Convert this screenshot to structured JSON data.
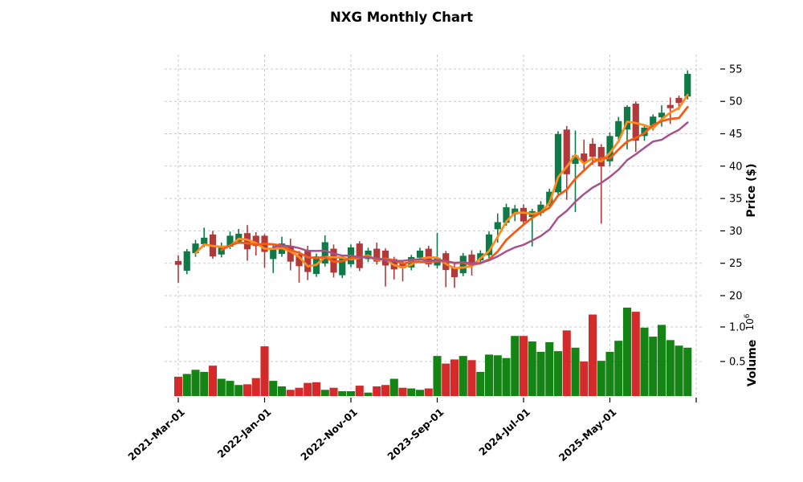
{
  "title": "NXG Monthly Chart",
  "chart_data": {
    "type": "candlestick",
    "title": "NXG Monthly Chart",
    "ylabel": "Price ($)",
    "volume_ylabel": "Volume",
    "volume_scale_base": "10",
    "volume_scale_exp": "6",
    "legend": "none",
    "grid": "dashed",
    "price_ticks": [
      20,
      25,
      30,
      35,
      40,
      45,
      50,
      55
    ],
    "price_ylim": [
      18.7,
      57.2
    ],
    "volume_ticks": [
      0.5,
      1.0
    ],
    "volume_ylim": [
      0,
      1.31
    ],
    "x_ticks": [
      {
        "index": 0,
        "label": "2021-Mar-01"
      },
      {
        "index": 10,
        "label": "2022-Jan-01"
      },
      {
        "index": 20,
        "label": "2022-Nov-01"
      },
      {
        "index": 30,
        "label": "2023-Sep-01"
      },
      {
        "index": 40,
        "label": "2024-Jul-01"
      },
      {
        "index": 50,
        "label": "2025-May-01"
      },
      {
        "index": 60,
        "label": ""
      }
    ],
    "mav_periods": [
      3,
      6,
      12
    ],
    "colors": {
      "up": "#0f7a47",
      "down": "#b23939",
      "volume_up": "#148514",
      "volume_down": "#d42a2a",
      "mav3": "#fd8c1e",
      "mav6": "#f15c16",
      "mav12": "#a5538b",
      "grid": "#c9c9c9",
      "text": "#000000"
    },
    "candles": [
      [
        "2021-Mar",
        25.3,
        26.2,
        22.0,
        24.8,
        0.28
      ],
      [
        "2021-Apr",
        23.9,
        27.2,
        23.3,
        26.8,
        0.32
      ],
      [
        "2021-May",
        26.6,
        28.6,
        26.0,
        28.0,
        0.38
      ],
      [
        "2021-Jun",
        28.0,
        30.5,
        27.5,
        28.9,
        0.35
      ],
      [
        "2021-Jul",
        29.4,
        30.0,
        25.7,
        26.1,
        0.44
      ],
      [
        "2021-Aug",
        26.4,
        28.2,
        25.9,
        27.6,
        0.25
      ],
      [
        "2021-Sep",
        27.6,
        29.9,
        27.2,
        29.2,
        0.22
      ],
      [
        "2021-Oct",
        28.4,
        30.3,
        28.0,
        29.5,
        0.16
      ],
      [
        "2021-Nov",
        29.6,
        30.9,
        25.4,
        27.2,
        0.17
      ],
      [
        "2021-Dec",
        29.2,
        29.8,
        26.2,
        27.7,
        0.26
      ],
      [
        "2022-Jan",
        29.2,
        29.5,
        24.3,
        26.8,
        0.72
      ],
      [
        "2022-Feb",
        25.7,
        27.8,
        23.5,
        27.2,
        0.22
      ],
      [
        "2022-Mar",
        26.5,
        29.1,
        26.0,
        28.0,
        0.14
      ],
      [
        "2022-Apr",
        27.6,
        28.8,
        23.9,
        25.3,
        0.09
      ],
      [
        "2022-May",
        26.3,
        26.9,
        22.0,
        24.6,
        0.12
      ],
      [
        "2022-Jun",
        27.0,
        27.7,
        22.4,
        23.7,
        0.19
      ],
      [
        "2022-Jul",
        23.4,
        26.5,
        22.9,
        26.0,
        0.2,
        "r"
      ],
      [
        "2022-Aug",
        25.0,
        29.3,
        24.5,
        28.2,
        0.09
      ],
      [
        "2022-Sep",
        27.2,
        27.9,
        22.8,
        23.6,
        0.12
      ],
      [
        "2022-Oct",
        23.2,
        26.3,
        22.7,
        25.8,
        0.07
      ],
      [
        "2022-Nov",
        24.9,
        27.9,
        24.4,
        27.4,
        0.07
      ],
      [
        "2022-Dec",
        28.0,
        28.4,
        23.8,
        24.3,
        0.15
      ],
      [
        "2023-Jan",
        25.7,
        27.4,
        25.2,
        26.9,
        0.05
      ],
      [
        "2023-Feb",
        27.2,
        28.2,
        24.8,
        25.3,
        0.14
      ],
      [
        "2023-Mar",
        26.9,
        27.3,
        21.4,
        24.7,
        0.16
      ],
      [
        "2023-Apr",
        25.6,
        26.0,
        22.5,
        24.1,
        0.25,
        "g"
      ],
      [
        "2023-May",
        24.9,
        25.4,
        22.2,
        24.3,
        0.12
      ],
      [
        "2023-Jun",
        24.4,
        26.3,
        23.9,
        25.9,
        0.11
      ],
      [
        "2023-Jul",
        25.9,
        27.4,
        25.4,
        26.9,
        0.09
      ],
      [
        "2023-Aug",
        27.2,
        27.7,
        24.4,
        24.9,
        0.11
      ],
      [
        "2023-Sep",
        24.7,
        29.7,
        24.2,
        25.8,
        0.58
      ],
      [
        "2023-Oct",
        26.5,
        26.9,
        21.3,
        24.0,
        0.47
      ],
      [
        "2023-Nov",
        24.3,
        24.9,
        21.2,
        22.9,
        0.53
      ],
      [
        "2023-Dec",
        23.5,
        26.6,
        23.0,
        26.1,
        0.58
      ],
      [
        "2024-Jan",
        26.3,
        27.0,
        23.1,
        24.7,
        0.52
      ],
      [
        "2024-Feb",
        25.5,
        27.0,
        25.0,
        26.5,
        0.35
      ],
      [
        "2024-Mar",
        26.3,
        29.9,
        25.8,
        29.4,
        0.6
      ],
      [
        "2024-Apr",
        30.3,
        32.7,
        28.2,
        31.3,
        0.59
      ],
      [
        "2024-May",
        31.3,
        34.2,
        30.8,
        33.6,
        0.55
      ],
      [
        "2024-Jun",
        32.6,
        34.0,
        31.5,
        33.4,
        0.87
      ],
      [
        "2024-Jul",
        33.5,
        34.1,
        31.0,
        31.5,
        0.87
      ],
      [
        "2024-Aug",
        32.2,
        33.4,
        27.6,
        33.0,
        0.79
      ],
      [
        "2024-Sep",
        32.8,
        34.6,
        32.3,
        34.0,
        0.64
      ],
      [
        "2024-Oct",
        34.0,
        36.5,
        33.5,
        36.0,
        0.78
      ],
      [
        "2024-Nov",
        36.0,
        45.4,
        35.5,
        44.9,
        0.65
      ],
      [
        "2024-Dec",
        45.6,
        46.2,
        34.8,
        38.8,
        0.95
      ],
      [
        "2025-Jan",
        40.4,
        45.5,
        32.9,
        41.6,
        0.7
      ],
      [
        "2025-Feb",
        41.9,
        44.1,
        39.4,
        40.7,
        0.5
      ],
      [
        "2025-Mar",
        43.4,
        44.3,
        40.2,
        41.5,
        1.18
      ],
      [
        "2025-Apr",
        42.9,
        43.4,
        31.1,
        40.0,
        0.51,
        "g"
      ],
      [
        "2025-May",
        40.8,
        45.2,
        40.0,
        44.6,
        0.64
      ],
      [
        "2025-Jun",
        44.6,
        47.6,
        43.8,
        46.9,
        0.8
      ],
      [
        "2025-Jul",
        45.7,
        49.4,
        42.6,
        49.1,
        1.28
      ],
      [
        "2025-Aug",
        49.6,
        50.0,
        42.2,
        44.0,
        1.22
      ],
      [
        "2025-Sep",
        44.7,
        46.4,
        43.9,
        45.9,
        0.99
      ],
      [
        "2025-Oct",
        46.3,
        48.0,
        45.5,
        47.6,
        0.86
      ],
      [
        "2025-Nov",
        47.6,
        49.4,
        46.1,
        48.2,
        1.03
      ],
      [
        "2025-Dec",
        49.4,
        50.6,
        46.5,
        49.0,
        0.81,
        "g"
      ],
      [
        "2026-Jan",
        50.5,
        50.9,
        48.7,
        49.8,
        0.73,
        "g"
      ],
      [
        "2026-Feb",
        50.8,
        54.8,
        50.3,
        54.2,
        0.7
      ]
    ]
  }
}
